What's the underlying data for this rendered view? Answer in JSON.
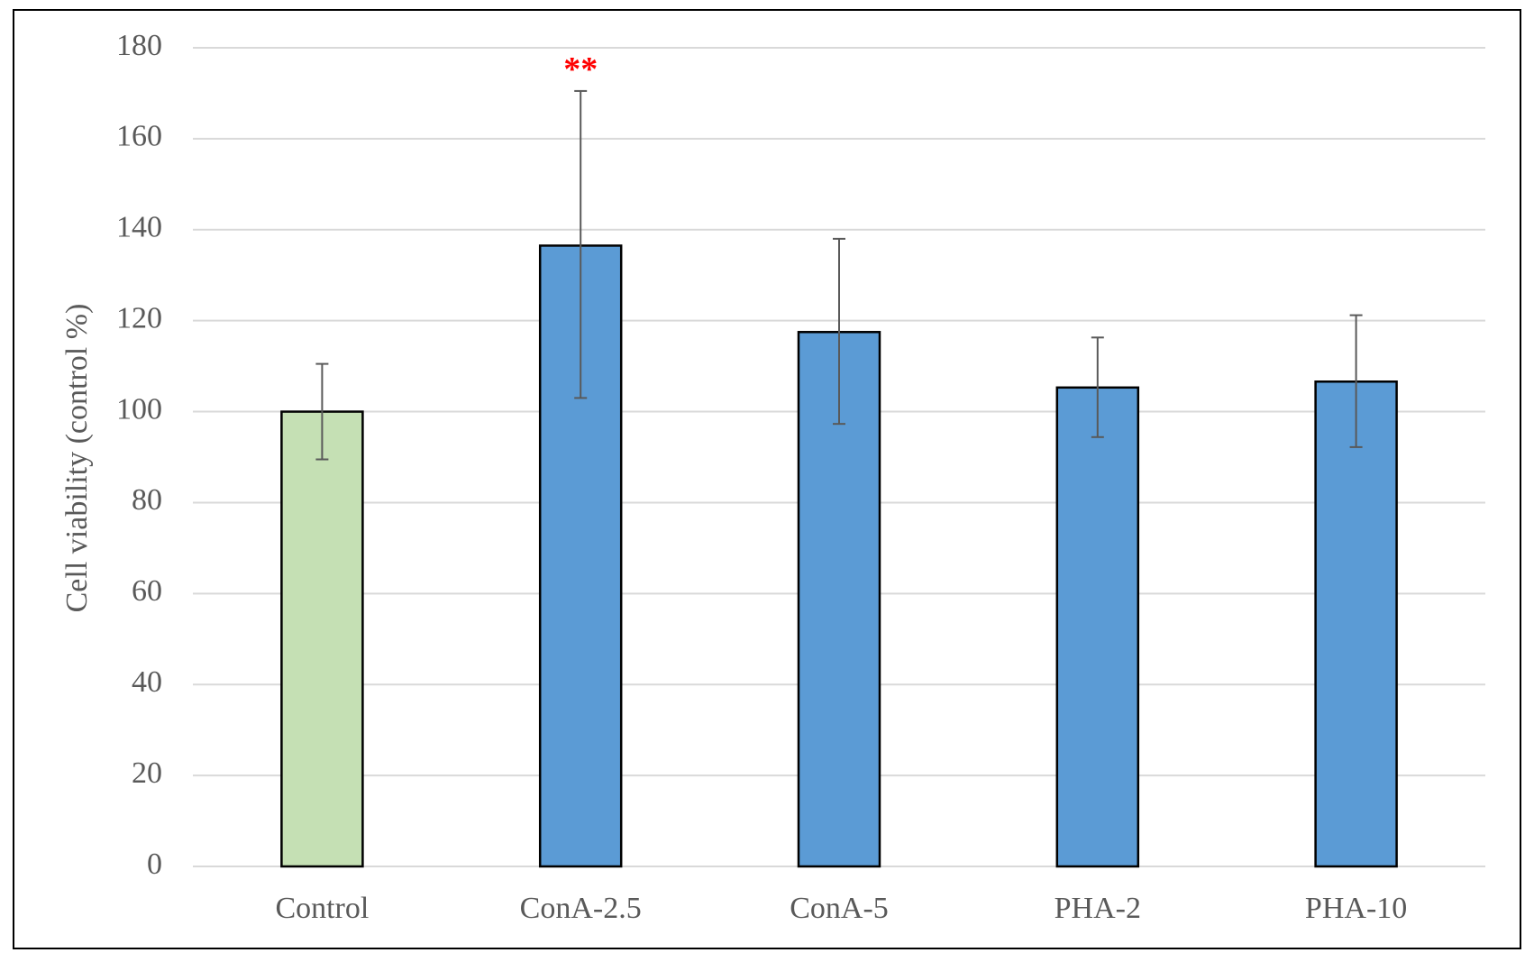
{
  "chart_data": {
    "type": "bar",
    "title": "",
    "xlabel": "",
    "ylabel": "Cell viability (control %)",
    "ylim": [
      0,
      180
    ],
    "yticks": [
      0,
      20,
      40,
      60,
      80,
      100,
      120,
      140,
      160,
      180
    ],
    "ytick_labels": [
      "0",
      "20",
      "40",
      "60",
      "80",
      "100",
      "120",
      "140",
      "160",
      "180"
    ],
    "grid": true,
    "legend": "none",
    "categories": [
      "Control",
      "ConA-2.5",
      "ConA-5",
      "PHA-2",
      "PHA-10"
    ],
    "values": [
      100,
      136.5,
      117.5,
      105.3,
      106.6
    ],
    "error_low": [
      89.5,
      103,
      97.3,
      94.4,
      92.2
    ],
    "error_high": [
      110.5,
      170.5,
      138,
      116.3,
      121.2
    ],
    "bar_colors": [
      "#c5e0b4",
      "#5b9bd5",
      "#5b9bd5",
      "#5b9bd5",
      "#5b9bd5"
    ],
    "annotations": [
      {
        "category": "ConA-2.5",
        "text": "**",
        "color": "#ff0000"
      }
    ]
  }
}
